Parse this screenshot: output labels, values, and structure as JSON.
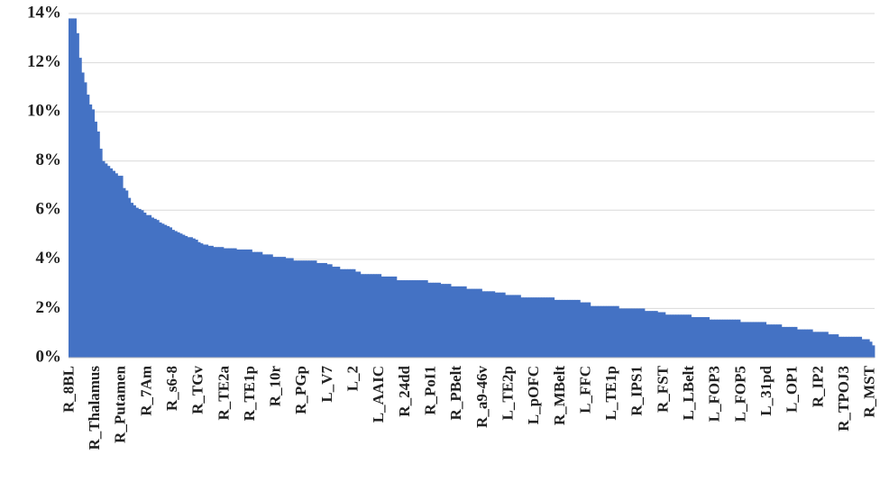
{
  "chart_data": {
    "type": "bar",
    "color": "#4472c4",
    "grid": true,
    "ylim": [
      0,
      14
    ],
    "yticks": [
      {
        "value": 0,
        "label": "0%"
      },
      {
        "value": 2,
        "label": "2%"
      },
      {
        "value": 4,
        "label": "4%"
      },
      {
        "value": 6,
        "label": "6%"
      },
      {
        "value": 8,
        "label": "8%"
      },
      {
        "value": 10,
        "label": "10%"
      },
      {
        "value": 12,
        "label": "12%"
      },
      {
        "value": 14,
        "label": "14%"
      }
    ],
    "categories": [
      "R_8BL",
      null,
      null,
      null,
      null,
      null,
      null,
      null,
      null,
      null,
      "R_Thalamus",
      null,
      null,
      null,
      null,
      null,
      null,
      null,
      null,
      null,
      "R_Putamen",
      null,
      null,
      null,
      null,
      null,
      null,
      null,
      null,
      null,
      "R_7Am",
      null,
      null,
      null,
      null,
      null,
      null,
      null,
      null,
      null,
      "R_s6-8",
      null,
      null,
      null,
      null,
      null,
      null,
      null,
      null,
      null,
      "R_TGv",
      null,
      null,
      null,
      null,
      null,
      null,
      null,
      null,
      null,
      "R_TE2a",
      null,
      null,
      null,
      null,
      null,
      null,
      null,
      null,
      null,
      "R_TE1p",
      null,
      null,
      null,
      null,
      null,
      null,
      null,
      null,
      null,
      "R_10r",
      null,
      null,
      null,
      null,
      null,
      null,
      null,
      null,
      null,
      "R_PGp",
      null,
      null,
      null,
      null,
      null,
      null,
      null,
      null,
      null,
      "L_V7",
      null,
      null,
      null,
      null,
      null,
      null,
      null,
      null,
      null,
      "L_2",
      null,
      null,
      null,
      null,
      null,
      null,
      null,
      null,
      null,
      "L_AAIC",
      null,
      null,
      null,
      null,
      null,
      null,
      null,
      null,
      null,
      "R_24dd",
      null,
      null,
      null,
      null,
      null,
      null,
      null,
      null,
      null,
      "R_PoI1",
      null,
      null,
      null,
      null,
      null,
      null,
      null,
      null,
      null,
      "R_PBelt",
      null,
      null,
      null,
      null,
      null,
      null,
      null,
      null,
      null,
      "R_a9-46v",
      null,
      null,
      null,
      null,
      null,
      null,
      null,
      null,
      null,
      "L_TE2p",
      null,
      null,
      null,
      null,
      null,
      null,
      null,
      null,
      null,
      "L_pOFC",
      null,
      null,
      null,
      null,
      null,
      null,
      null,
      null,
      null,
      "R_MBelt",
      null,
      null,
      null,
      null,
      null,
      null,
      null,
      null,
      null,
      "L_FFC",
      null,
      null,
      null,
      null,
      null,
      null,
      null,
      null,
      null,
      "L_TE1p",
      null,
      null,
      null,
      null,
      null,
      null,
      null,
      null,
      null,
      "R_IPS1",
      null,
      null,
      null,
      null,
      null,
      null,
      null,
      null,
      null,
      "R_FST",
      null,
      null,
      null,
      null,
      null,
      null,
      null,
      null,
      null,
      "L_LBelt",
      null,
      null,
      null,
      null,
      null,
      null,
      null,
      null,
      null,
      "L_FOP3",
      null,
      null,
      null,
      null,
      null,
      null,
      null,
      null,
      null,
      "L_FOP5",
      null,
      null,
      null,
      null,
      null,
      null,
      null,
      null,
      null,
      "L_31pd",
      null,
      null,
      null,
      null,
      null,
      null,
      null,
      null,
      null,
      "L_OP1",
      null,
      null,
      null,
      null,
      null,
      null,
      null,
      null,
      null,
      "R_IP2",
      null,
      null,
      null,
      null,
      null,
      null,
      null,
      null,
      null,
      "R_TPOJ3",
      null,
      null,
      null,
      null,
      null,
      null,
      null,
      null,
      null,
      "R_MST",
      null
    ],
    "values": [
      13.8,
      13.8,
      13.8,
      13.2,
      12.2,
      11.6,
      11.2,
      10.7,
      10.3,
      10.1,
      9.6,
      9.2,
      8.5,
      8.0,
      7.9,
      7.8,
      7.7,
      7.6,
      7.5,
      7.4,
      7.4,
      6.9,
      6.8,
      6.5,
      6.3,
      6.2,
      6.1,
      6.05,
      6.0,
      5.9,
      5.8,
      5.8,
      5.7,
      5.65,
      5.6,
      5.5,
      5.45,
      5.4,
      5.35,
      5.3,
      5.2,
      5.15,
      5.1,
      5.05,
      5.0,
      4.95,
      4.9,
      4.9,
      4.85,
      4.8,
      4.7,
      4.65,
      4.6,
      4.6,
      4.55,
      4.55,
      4.5,
      4.5,
      4.5,
      4.5,
      4.45,
      4.45,
      4.45,
      4.45,
      4.45,
      4.4,
      4.4,
      4.4,
      4.4,
      4.4,
      4.4,
      4.3,
      4.3,
      4.3,
      4.3,
      4.2,
      4.2,
      4.2,
      4.2,
      4.1,
      4.1,
      4.1,
      4.1,
      4.1,
      4.05,
      4.05,
      4.05,
      3.95,
      3.95,
      3.95,
      3.95,
      3.95,
      3.95,
      3.95,
      3.95,
      3.95,
      3.85,
      3.85,
      3.85,
      3.85,
      3.8,
      3.8,
      3.7,
      3.7,
      3.7,
      3.6,
      3.6,
      3.6,
      3.6,
      3.6,
      3.6,
      3.5,
      3.5,
      3.4,
      3.4,
      3.4,
      3.4,
      3.4,
      3.4,
      3.4,
      3.4,
      3.3,
      3.3,
      3.3,
      3.3,
      3.3,
      3.3,
      3.15,
      3.15,
      3.15,
      3.15,
      3.15,
      3.15,
      3.15,
      3.15,
      3.15,
      3.15,
      3.15,
      3.15,
      3.05,
      3.05,
      3.05,
      3.05,
      3.05,
      3.0,
      3.0,
      3.0,
      3.0,
      2.9,
      2.9,
      2.9,
      2.9,
      2.9,
      2.9,
      2.8,
      2.8,
      2.8,
      2.8,
      2.8,
      2.8,
      2.7,
      2.7,
      2.7,
      2.7,
      2.7,
      2.65,
      2.65,
      2.65,
      2.65,
      2.55,
      2.55,
      2.55,
      2.55,
      2.55,
      2.55,
      2.45,
      2.45,
      2.45,
      2.45,
      2.45,
      2.45,
      2.45,
      2.45,
      2.45,
      2.45,
      2.45,
      2.45,
      2.45,
      2.35,
      2.35,
      2.35,
      2.35,
      2.35,
      2.35,
      2.35,
      2.35,
      2.35,
      2.35,
      2.25,
      2.25,
      2.25,
      2.25,
      2.1,
      2.1,
      2.1,
      2.1,
      2.1,
      2.1,
      2.1,
      2.1,
      2.1,
      2.1,
      2.1,
      2.0,
      2.0,
      2.0,
      2.0,
      2.0,
      2.0,
      2.0,
      2.0,
      2.0,
      2.0,
      1.9,
      1.9,
      1.9,
      1.9,
      1.9,
      1.85,
      1.85,
      1.85,
      1.75,
      1.75,
      1.75,
      1.75,
      1.75,
      1.75,
      1.75,
      1.75,
      1.75,
      1.75,
      1.65,
      1.65,
      1.65,
      1.65,
      1.65,
      1.65,
      1.65,
      1.55,
      1.55,
      1.55,
      1.55,
      1.55,
      1.55,
      1.55,
      1.55,
      1.55,
      1.55,
      1.55,
      1.55,
      1.45,
      1.45,
      1.45,
      1.45,
      1.45,
      1.45,
      1.45,
      1.45,
      1.45,
      1.45,
      1.35,
      1.35,
      1.35,
      1.35,
      1.35,
      1.35,
      1.25,
      1.25,
      1.25,
      1.25,
      1.25,
      1.25,
      1.15,
      1.15,
      1.15,
      1.15,
      1.15,
      1.15,
      1.05,
      1.05,
      1.05,
      1.05,
      1.05,
      1.05,
      0.95,
      0.95,
      0.95,
      0.95,
      0.85,
      0.85,
      0.85,
      0.85,
      0.85,
      0.85,
      0.85,
      0.85,
      0.85,
      0.75,
      0.75,
      0.75,
      0.65,
      0.5
    ]
  }
}
